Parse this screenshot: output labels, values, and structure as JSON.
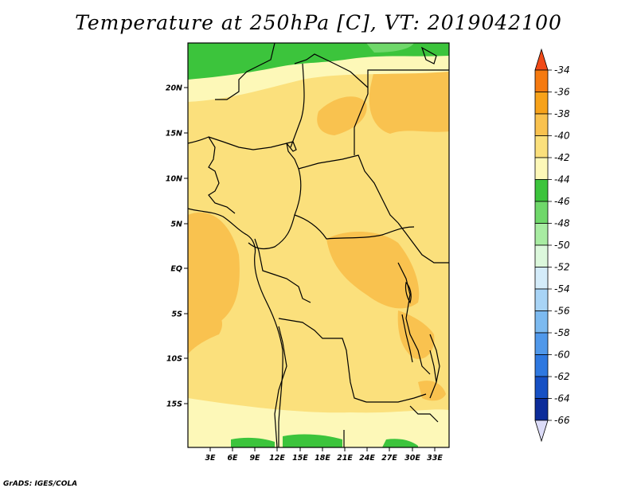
{
  "title": "Temperature at 250hPa [C], VT: 2019042100",
  "credit": "GrADS: IGES/COLA",
  "map": {
    "lat_labels": [
      "20N",
      "15N",
      "10N",
      "5N",
      "EQ",
      "5S",
      "10S",
      "15S"
    ],
    "lon_labels": [
      "3E",
      "6E",
      "9E",
      "12E",
      "15E",
      "18E",
      "21E",
      "24E",
      "27E",
      "30E",
      "33E"
    ]
  },
  "colorbar": {
    "labels": [
      "-34",
      "-36",
      "-38",
      "-40",
      "-42",
      "-44",
      "-46",
      "-48",
      "-50",
      "-52",
      "-54",
      "-56",
      "-58",
      "-60",
      "-62",
      "-64",
      "-66"
    ],
    "colors": {
      "top_arrow": "#f04a18",
      "-36_-34": "#f57a10",
      "-38_-36": "#f7a21a",
      "-40_-38": "#f9c24f",
      "-42_-40": "#fbe07c",
      "-44_-42": "#fdf8b8",
      "-46_-44": "#3cc43c",
      "-48_-46": "#6fd86a",
      "-50_-48": "#a8eca2",
      "-52_-50": "#dcf8dc",
      "-54_-52": "#d4ecfa",
      "-56_-54": "#a8d4f6",
      "-58_-56": "#7cbaf0",
      "-60_-58": "#5098ea",
      "-62_-60": "#2e78e0",
      "-64_-62": "#1650c4",
      "-66_-64": "#0c2c9a",
      "bottom_arrow": "#dcdcf8"
    }
  }
}
